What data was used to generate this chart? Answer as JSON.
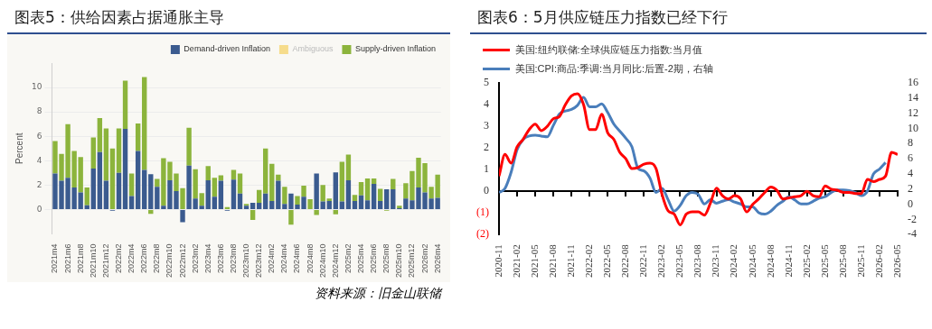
{
  "chart_data": [
    {
      "type": "bar",
      "title": "图表5：供给因素占据通胀主导",
      "ylabel": "Percent",
      "stacked": true,
      "grid": "y",
      "legend": "top right",
      "categories": [
        "2021m4",
        null,
        "2021m6",
        null,
        "2021m8",
        null,
        "2021m10",
        null,
        "2021m12",
        null,
        "2022m2",
        null,
        "2022m4",
        null,
        "2022m6",
        null,
        "2022m8",
        null,
        "2022m10",
        null,
        "2022m12",
        null,
        "2023m2",
        null,
        "2023m4",
        null,
        "2023m6",
        null,
        "2023m8",
        null,
        "2023m10",
        null,
        "2023m12",
        null,
        "2024m2",
        null,
        "2024m4",
        null,
        "2024m6",
        null,
        "2024m8",
        null,
        "2024m10",
        null,
        "2024m12",
        null,
        "2025m2",
        null,
        "2025m4",
        null,
        "2025m6",
        null,
        "2025m8",
        null,
        "2025m10",
        null,
        "2025m12",
        null,
        "2026m2",
        null,
        "2026m4"
      ],
      "ylim": [
        -2,
        12
      ],
      "yticks": [
        0,
        2,
        4,
        6,
        8,
        10
      ],
      "series": [
        {
          "name": "Demand-driven Inflation",
          "color": "#3b5b8f",
          "values": [
            2.95,
            2.35,
            2.6,
            1.8,
            1.4,
            0.35,
            3.35,
            4.7,
            2.35,
            -0.1,
            3.0,
            6.6,
            1.1,
            4.8,
            3.25,
            2.9,
            1.85,
            0.3,
            2.4,
            1.5,
            -1.05,
            3.6,
            0.9,
            0.3,
            2.4,
            1.05,
            2.35,
            -0.1,
            2.45,
            1.3,
            0.3,
            0.55,
            0.55,
            1.3,
            0.7,
            2.35,
            0.45,
            1.3,
            0.4,
            1.05,
            0.0,
            2.95,
            0.65,
            0.7,
            3.05,
            0.65,
            2.4,
            0.7,
            1.15,
            0.75,
            2.1,
            0.7,
            1.65,
            1.65,
            0.1,
            0.9,
            0.75,
            1.8,
            1.4,
            0.9,
            0.95
          ]
        },
        {
          "name": "Ambiguous",
          "color": "#f6dc8c",
          "values": [
            null,
            null,
            null,
            null,
            null,
            null,
            null,
            null,
            null,
            null,
            null,
            null,
            null,
            null,
            null,
            null,
            null,
            null,
            null,
            null,
            null,
            null,
            null,
            null,
            null,
            null,
            null,
            null,
            null,
            null,
            null,
            null,
            null,
            null,
            null,
            null,
            null,
            null,
            null,
            null,
            null,
            null,
            null,
            null,
            null,
            null,
            null,
            null,
            null,
            null,
            null,
            null,
            null,
            null,
            null,
            null,
            null,
            null,
            null,
            null,
            null
          ]
        },
        {
          "name": "Supply-driven Inflation",
          "color": "#8cb43c",
          "values": [
            2.65,
            2.2,
            4.4,
            3.0,
            2.9,
            1.45,
            2.55,
            2.8,
            4.3,
            5.0,
            3.65,
            3.95,
            1.85,
            2.25,
            7.6,
            -0.35,
            0.65,
            3.9,
            1.5,
            1.45,
            1.75,
            3.1,
            2.4,
            1.05,
            1.15,
            1.55,
            0.45,
            0.2,
            0.8,
            1.65,
            0.15,
            -0.85,
            1.05,
            3.7,
            3.05,
            0.5,
            1.4,
            -1.25,
            0.7,
            0.9,
            0.85,
            -0.45,
            1.35,
            0.2,
            -0.4,
            3.25,
            2.1,
            0.5,
            1.1,
            1.8,
            0.45,
            1.0,
            -0.1,
            0.85,
            0.2,
            1.25,
            2.4,
            2.45,
            2.4,
            0.95,
            1.9
          ]
        }
      ],
      "annotations": [
        "资料来源：旧金山联储"
      ]
    },
    {
      "type": "line",
      "title": "图表6：5月供应链压力指数已经下行",
      "legend": "top left",
      "marker": "none",
      "xlim": [
        "2020-11",
        "2026-05"
      ],
      "xticks": [
        "2020-11",
        "2021-02",
        "2021-05",
        "2021-08",
        "2021-11",
        "2022-02",
        "2022-05",
        "2022-08",
        "2022-11",
        "2023-02",
        "2023-05",
        "2023-08",
        "2023-11",
        "2024-02",
        "2024-05",
        "2024-08",
        "2024-11",
        "2025-02",
        "2025-05",
        "2025-08",
        "2025-11",
        "2026-02",
        "2026-05"
      ],
      "ylim": [
        -2,
        5
      ],
      "yticks": [
        {
          "value": -2,
          "label": "(2)"
        },
        {
          "value": -1,
          "label": "(1)"
        },
        0,
        1,
        2,
        3,
        4,
        5
      ],
      "y2lim": [
        -4,
        16
      ],
      "y2ticks": [
        -4,
        -2,
        0,
        2,
        4,
        6,
        8,
        10,
        12,
        14,
        16
      ],
      "x": [
        "2020-11",
        "2020-12",
        "2021-01",
        "2021-02",
        "2021-03",
        "2021-04",
        "2021-05",
        "2021-06",
        "2021-07",
        "2021-08",
        "2021-09",
        "2021-10",
        "2021-11",
        "2021-12",
        "2022-01",
        "2022-02",
        "2022-03",
        "2022-04",
        "2022-05",
        "2022-06",
        "2022-07",
        "2022-08",
        "2022-09",
        "2022-10",
        "2022-11",
        "2022-12",
        "2023-01",
        "2023-02",
        "2023-03",
        "2023-04",
        "2023-05",
        "2023-06",
        "2023-07",
        "2023-08",
        "2023-09",
        "2023-10",
        "2023-11",
        "2023-12",
        "2024-01",
        "2024-02",
        "2024-03",
        "2024-04",
        "2024-05",
        "2024-06",
        "2024-07",
        "2024-08",
        "2024-09",
        "2024-10",
        "2024-11",
        "2024-12",
        "2025-01",
        "2025-02",
        "2025-03",
        "2025-04",
        "2025-05",
        "2025-06",
        "2025-07",
        "2025-08",
        "2025-09",
        "2025-10",
        "2025-11",
        "2025-12",
        "2026-01",
        "2026-02",
        "2026-03",
        "2026-04",
        "2026-05"
      ],
      "series": [
        {
          "name": "美国:纽约联储:全球供应链压力指数:当月值",
          "color": "#ff0000",
          "values": [
            0.7,
            1.7,
            1.3,
            2.05,
            2.4,
            2.85,
            3.1,
            2.8,
            3.0,
            3.35,
            3.45,
            4.0,
            4.4,
            4.5,
            4.0,
            2.85,
            2.85,
            3.55,
            2.7,
            2.4,
            1.8,
            1.5,
            1.05,
            1.1,
            1.25,
            1.3,
            1.05,
            -0.15,
            -0.9,
            -1.05,
            -1.55,
            -1.05,
            -0.95,
            -0.95,
            -1.1,
            -0.55,
            0.15,
            -0.2,
            -0.35,
            -0.2,
            -0.35,
            -0.95,
            -0.6,
            -0.35,
            -0.05,
            0.2,
            0.05,
            -0.35,
            -0.3,
            -0.25,
            -0.2,
            0.0,
            -0.2,
            -0.25,
            0.25,
            0.1,
            0.05,
            -0.05,
            -0.05,
            -0.1,
            -0.1,
            0.55,
            0.45,
            0.55,
            0.7,
            1.8,
            1.7
          ]
        },
        {
          "name": "美国:CPI:商品:季调:当月同比:后置-2期，右轴",
          "color": "#4a7ebb",
          "axis": "y2",
          "values": [
            1.55,
            2.1,
            4.2,
            7.2,
            8.55,
            9.0,
            9.1,
            9.0,
            8.9,
            10.4,
            11.9,
            12.3,
            12.5,
            13.05,
            14.1,
            12.85,
            12.85,
            13.25,
            12.1,
            10.6,
            9.65,
            8.7,
            7.6,
            4.75,
            4.4,
            3.45,
            1.55,
            2.1,
            0.6,
            -0.9,
            -0.15,
            1.15,
            1.55,
            1.3,
            0.05,
            0.6,
            0.15,
            0.4,
            0.6,
            0.3,
            0.05,
            -0.35,
            -0.35,
            -1.1,
            -1.3,
            -0.9,
            -0.15,
            0.4,
            1.0,
            0.55,
            0.05,
            0.05,
            0.4,
            0.8,
            1.0,
            1.55,
            1.9,
            1.9,
            1.8,
            1.55,
            1.15,
            1.75,
            4.0,
            4.65,
            5.5,
            null,
            null
          ]
        }
      ]
    }
  ]
}
